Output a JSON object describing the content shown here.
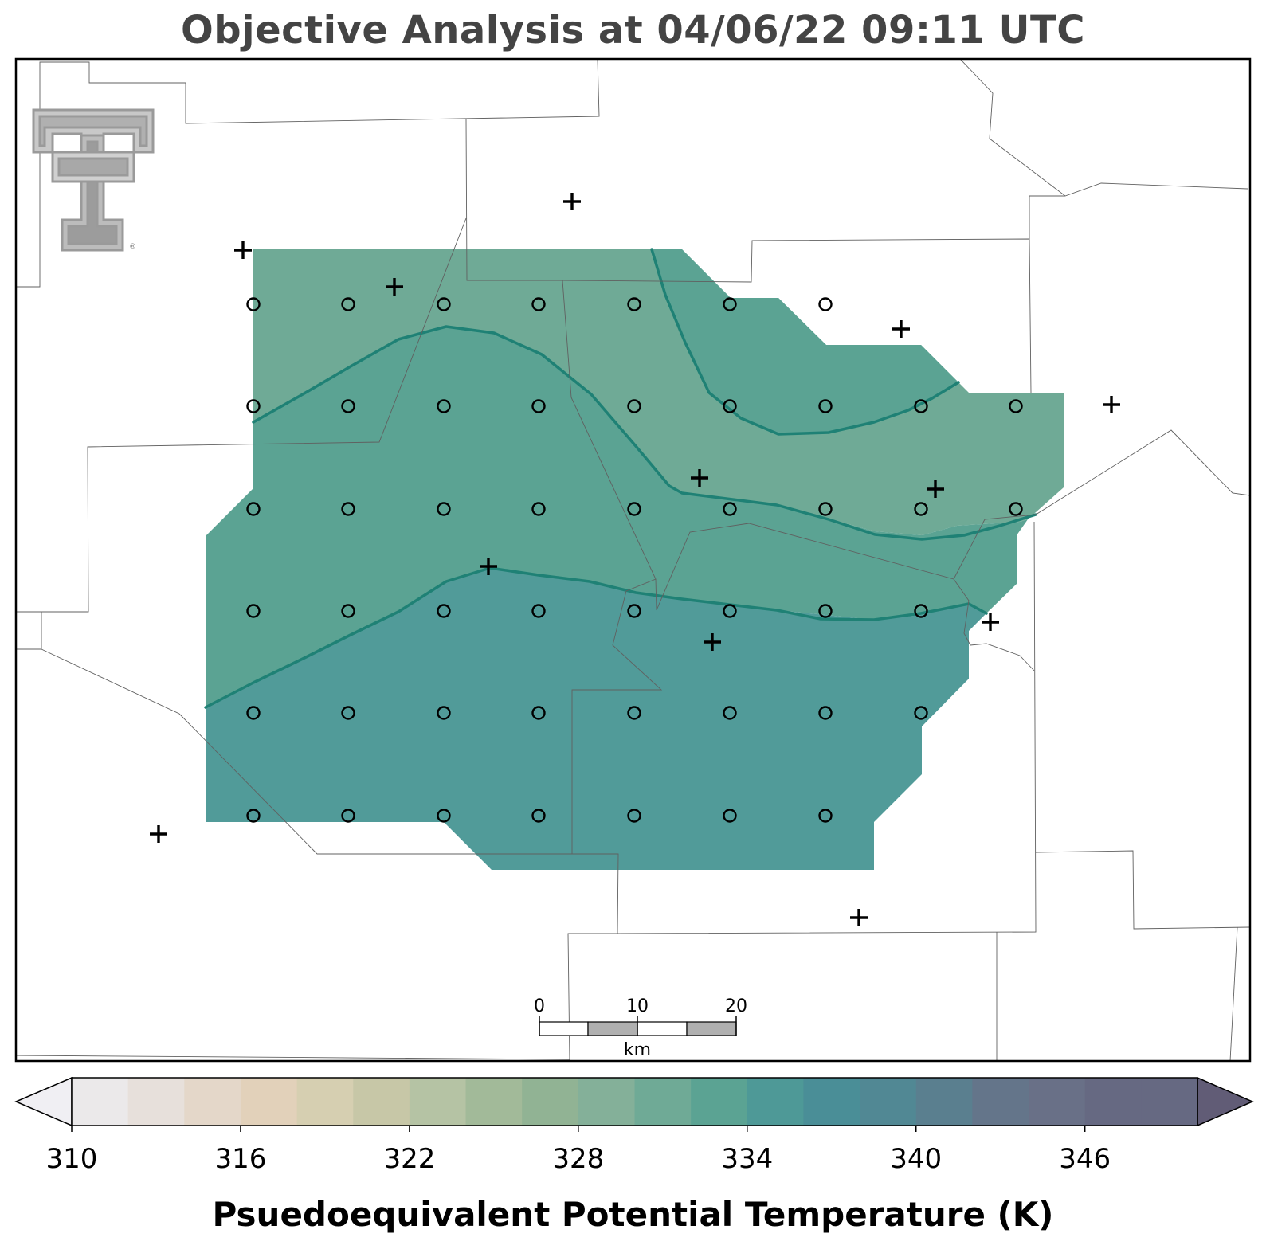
{
  "title": "Objective Analysis at 04/06/22 09:11 UTC",
  "colorbar": {
    "label": "Psuedoequivalent Potential Temperature (K)",
    "tick_labels": [
      "310",
      "316",
      "322",
      "328",
      "334",
      "340",
      "346"
    ],
    "min": 310,
    "max": 350,
    "step": 2,
    "colors": [
      "#f0eff3",
      "#ebe9ea",
      "#e7e0db",
      "#e4d7c9",
      "#e2d1ba",
      "#d6cfb1",
      "#c7c7a7",
      "#b5c3a4",
      "#a2ba99",
      "#91b394",
      "#84b099",
      "#6faa96",
      "#5ba393",
      "#4e9997",
      "#4a8e97",
      "#518894",
      "#5a7f8f",
      "#64758a",
      "#697087",
      "#666982",
      "#615c76"
    ],
    "extend": "both"
  },
  "scale_bar": {
    "labels": [
      "0",
      "10",
      "20"
    ],
    "unit": "km"
  },
  "logo": {
    "name": "Texas Tech double-T"
  },
  "contour_fill": {
    "regions": [
      {
        "level": "330-332",
        "color": "#6faa96"
      },
      {
        "level": "332-334",
        "color": "#5ba393"
      },
      {
        "level": "334-336",
        "color": "#519b99"
      }
    ],
    "contour_line_color": "#1f8175"
  },
  "markers": {
    "grid_points": "circle",
    "stations": "plus"
  }
}
